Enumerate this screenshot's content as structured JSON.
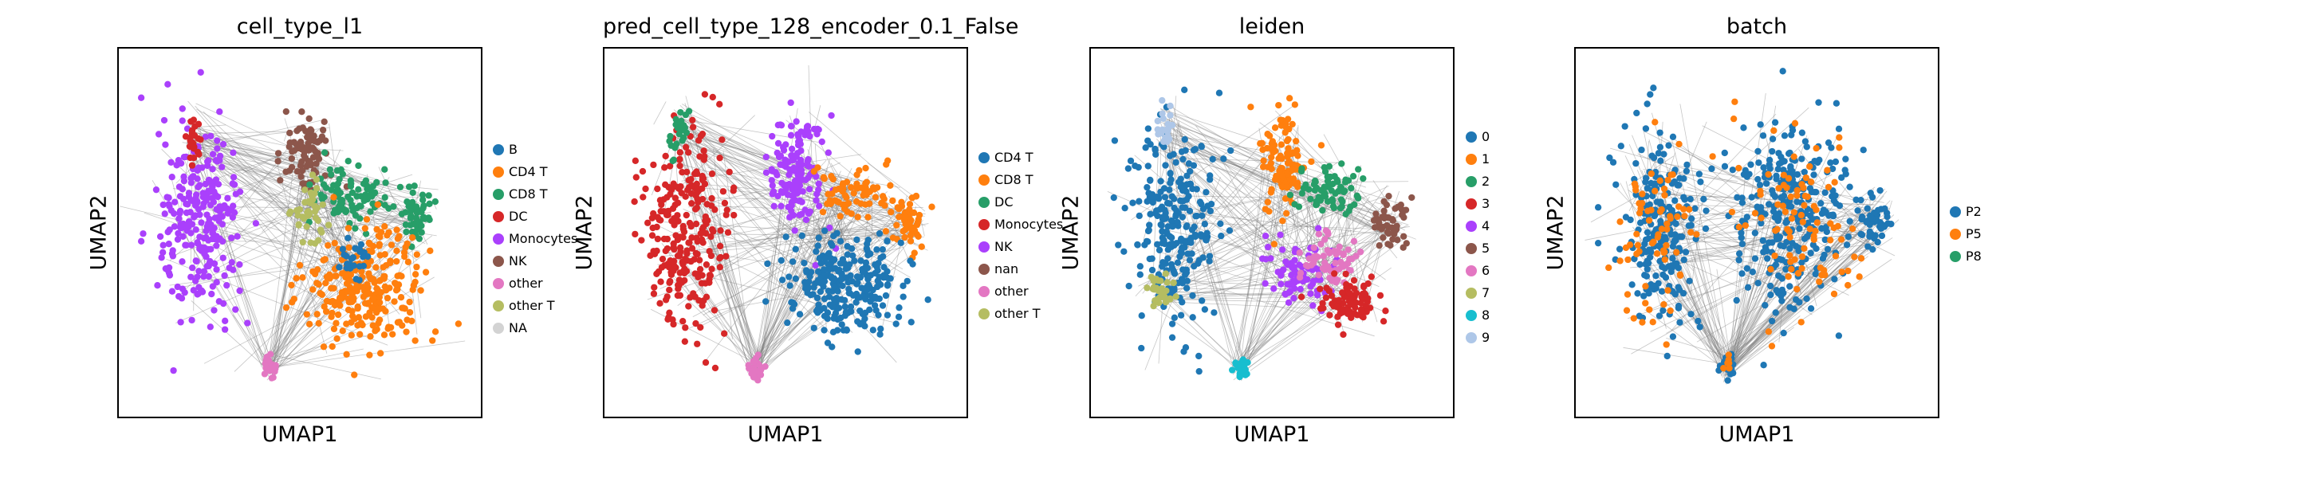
{
  "chart_data": [
    {
      "type": "scatter",
      "title": "cell_type_l1",
      "xlabel": "UMAP1",
      "ylabel": "UMAP2",
      "legend_position": "right",
      "legend": [
        {
          "label": "B",
          "color": "#1f77b4"
        },
        {
          "label": "CD4 T",
          "color": "#ff7f0e"
        },
        {
          "label": "CD8 T",
          "color": "#279e68"
        },
        {
          "label": "DC",
          "color": "#d62728"
        },
        {
          "label": "Monocytes",
          "color": "#aa40fc"
        },
        {
          "label": "NK",
          "color": "#8c564b"
        },
        {
          "label": "other",
          "color": "#e377c2"
        },
        {
          "label": "other T",
          "color": "#b5bd61"
        },
        {
          "label": "NA",
          "color": "#d3d3d3"
        }
      ],
      "clusters": [
        {
          "label": "Monocytes",
          "color": "#aa40fc",
          "center": [
            0.2,
            0.52
          ],
          "spread": [
            0.07,
            0.16
          ],
          "n": 260
        },
        {
          "label": "DC",
          "color": "#d62728",
          "center": [
            0.18,
            0.78
          ],
          "spread": [
            0.015,
            0.04
          ],
          "n": 25
        },
        {
          "label": "NK",
          "color": "#8c564b",
          "center": [
            0.52,
            0.73
          ],
          "spread": [
            0.04,
            0.06
          ],
          "n": 80
        },
        {
          "label": "CD8 T",
          "color": "#279e68",
          "center": [
            0.65,
            0.62
          ],
          "spread": [
            0.07,
            0.05
          ],
          "n": 90
        },
        {
          "label": "CD8 T",
          "color": "#279e68",
          "center": [
            0.86,
            0.55
          ],
          "spread": [
            0.03,
            0.05
          ],
          "n": 50
        },
        {
          "label": "other T",
          "color": "#b5bd61",
          "center": [
            0.53,
            0.57
          ],
          "spread": [
            0.03,
            0.05
          ],
          "n": 40
        },
        {
          "label": "CD4 T",
          "color": "#ff7f0e",
          "center": [
            0.7,
            0.34
          ],
          "spread": [
            0.1,
            0.09
          ],
          "n": 260
        },
        {
          "label": "B",
          "color": "#1f77b4",
          "center": [
            0.66,
            0.42
          ],
          "spread": [
            0.03,
            0.03
          ],
          "n": 25
        },
        {
          "label": "other",
          "color": "#e377c2",
          "center": [
            0.41,
            0.1
          ],
          "spread": [
            0.012,
            0.02
          ],
          "n": 25
        }
      ]
    },
    {
      "type": "scatter",
      "title": "pred_cell_type_128_encoder_0.1_False",
      "xlabel": "UMAP1",
      "ylabel": "UMAP2",
      "legend_position": "right",
      "legend": [
        {
          "label": "CD4 T",
          "color": "#1f77b4"
        },
        {
          "label": "CD8 T",
          "color": "#ff7f0e"
        },
        {
          "label": "DC",
          "color": "#279e68"
        },
        {
          "label": "Monocytes",
          "color": "#d62728"
        },
        {
          "label": "NK",
          "color": "#aa40fc"
        },
        {
          "label": "nan",
          "color": "#8c564b"
        },
        {
          "label": "other",
          "color": "#e377c2"
        },
        {
          "label": "other T",
          "color": "#b5bd61"
        }
      ],
      "clusters": [
        {
          "label": "Monocytes",
          "color": "#d62728",
          "center": [
            0.2,
            0.52
          ],
          "spread": [
            0.07,
            0.16
          ],
          "n": 260
        },
        {
          "label": "DC",
          "color": "#279e68",
          "center": [
            0.18,
            0.8
          ],
          "spread": [
            0.015,
            0.04
          ],
          "n": 25
        },
        {
          "label": "NK",
          "color": "#aa40fc",
          "center": [
            0.54,
            0.67
          ],
          "spread": [
            0.05,
            0.1
          ],
          "n": 150
        },
        {
          "label": "CD8 T",
          "color": "#ff7f0e",
          "center": [
            0.7,
            0.62
          ],
          "spread": [
            0.06,
            0.04
          ],
          "n": 70
        },
        {
          "label": "CD8 T",
          "color": "#ff7f0e",
          "center": [
            0.87,
            0.53
          ],
          "spread": [
            0.03,
            0.05
          ],
          "n": 50
        },
        {
          "label": "CD4 T",
          "color": "#1f77b4",
          "center": [
            0.68,
            0.34
          ],
          "spread": [
            0.1,
            0.09
          ],
          "n": 260
        },
        {
          "label": "other",
          "color": "#e377c2",
          "center": [
            0.41,
            0.1
          ],
          "spread": [
            0.012,
            0.02
          ],
          "n": 25
        }
      ]
    },
    {
      "type": "scatter",
      "title": "leiden",
      "xlabel": "UMAP1",
      "ylabel": "UMAP2",
      "legend_position": "right",
      "legend": [
        {
          "label": "0",
          "color": "#1f77b4"
        },
        {
          "label": "1",
          "color": "#ff7f0e"
        },
        {
          "label": "2",
          "color": "#279e68"
        },
        {
          "label": "3",
          "color": "#d62728"
        },
        {
          "label": "4",
          "color": "#aa40fc"
        },
        {
          "label": "5",
          "color": "#8c564b"
        },
        {
          "label": "6",
          "color": "#e377c2"
        },
        {
          "label": "7",
          "color": "#b5bd61"
        },
        {
          "label": "8",
          "color": "#17becf"
        },
        {
          "label": "9",
          "color": "#aec7e8"
        }
      ],
      "clusters": [
        {
          "label": "0",
          "color": "#1f77b4",
          "center": [
            0.2,
            0.52
          ],
          "spread": [
            0.07,
            0.16
          ],
          "n": 260
        },
        {
          "label": "7",
          "color": "#b5bd61",
          "center": [
            0.16,
            0.33
          ],
          "spread": [
            0.025,
            0.025
          ],
          "n": 30
        },
        {
          "label": "9",
          "color": "#aec7e8",
          "center": [
            0.18,
            0.8
          ],
          "spread": [
            0.015,
            0.04
          ],
          "n": 25
        },
        {
          "label": "1",
          "color": "#ff7f0e",
          "center": [
            0.53,
            0.7
          ],
          "spread": [
            0.04,
            0.09
          ],
          "n": 110
        },
        {
          "label": "2",
          "color": "#279e68",
          "center": [
            0.68,
            0.62
          ],
          "spread": [
            0.06,
            0.04
          ],
          "n": 70
        },
        {
          "label": "5",
          "color": "#8c564b",
          "center": [
            0.86,
            0.53
          ],
          "spread": [
            0.03,
            0.05
          ],
          "n": 50
        },
        {
          "label": "4",
          "color": "#aa40fc",
          "center": [
            0.58,
            0.38
          ],
          "spread": [
            0.05,
            0.06
          ],
          "n": 80
        },
        {
          "label": "6",
          "color": "#e377c2",
          "center": [
            0.68,
            0.42
          ],
          "spread": [
            0.05,
            0.04
          ],
          "n": 60
        },
        {
          "label": "3",
          "color": "#d62728",
          "center": [
            0.73,
            0.29
          ],
          "spread": [
            0.05,
            0.04
          ],
          "n": 90
        },
        {
          "label": "8",
          "color": "#17becf",
          "center": [
            0.41,
            0.1
          ],
          "spread": [
            0.012,
            0.02
          ],
          "n": 25
        }
      ]
    },
    {
      "type": "scatter",
      "title": "batch",
      "xlabel": "UMAP1",
      "ylabel": "UMAP2",
      "legend_position": "right",
      "legend": [
        {
          "label": "P2",
          "color": "#1f77b4"
        },
        {
          "label": "P5",
          "color": "#ff7f0e"
        },
        {
          "label": "P8",
          "color": "#279e68"
        }
      ],
      "clusters": [
        {
          "label": "P2",
          "color": "#1f77b4",
          "center": [
            0.2,
            0.52
          ],
          "spread": [
            0.07,
            0.16
          ],
          "n": 220
        },
        {
          "label": "P5",
          "color": "#ff7f0e",
          "center": [
            0.2,
            0.52
          ],
          "spread": [
            0.07,
            0.16
          ],
          "n": 70
        },
        {
          "label": "P2",
          "color": "#1f77b4",
          "center": [
            0.6,
            0.55
          ],
          "spread": [
            0.1,
            0.16
          ],
          "n": 300
        },
        {
          "label": "P5",
          "color": "#ff7f0e",
          "center": [
            0.62,
            0.52
          ],
          "spread": [
            0.1,
            0.16
          ],
          "n": 90
        },
        {
          "label": "P2",
          "color": "#1f77b4",
          "center": [
            0.86,
            0.53
          ],
          "spread": [
            0.03,
            0.05
          ],
          "n": 50
        },
        {
          "label": "P2",
          "color": "#1f77b4",
          "center": [
            0.41,
            0.1
          ],
          "spread": [
            0.012,
            0.02
          ],
          "n": 20
        },
        {
          "label": "P5",
          "color": "#ff7f0e",
          "center": [
            0.41,
            0.1
          ],
          "spread": [
            0.012,
            0.02
          ],
          "n": 6
        }
      ]
    }
  ]
}
